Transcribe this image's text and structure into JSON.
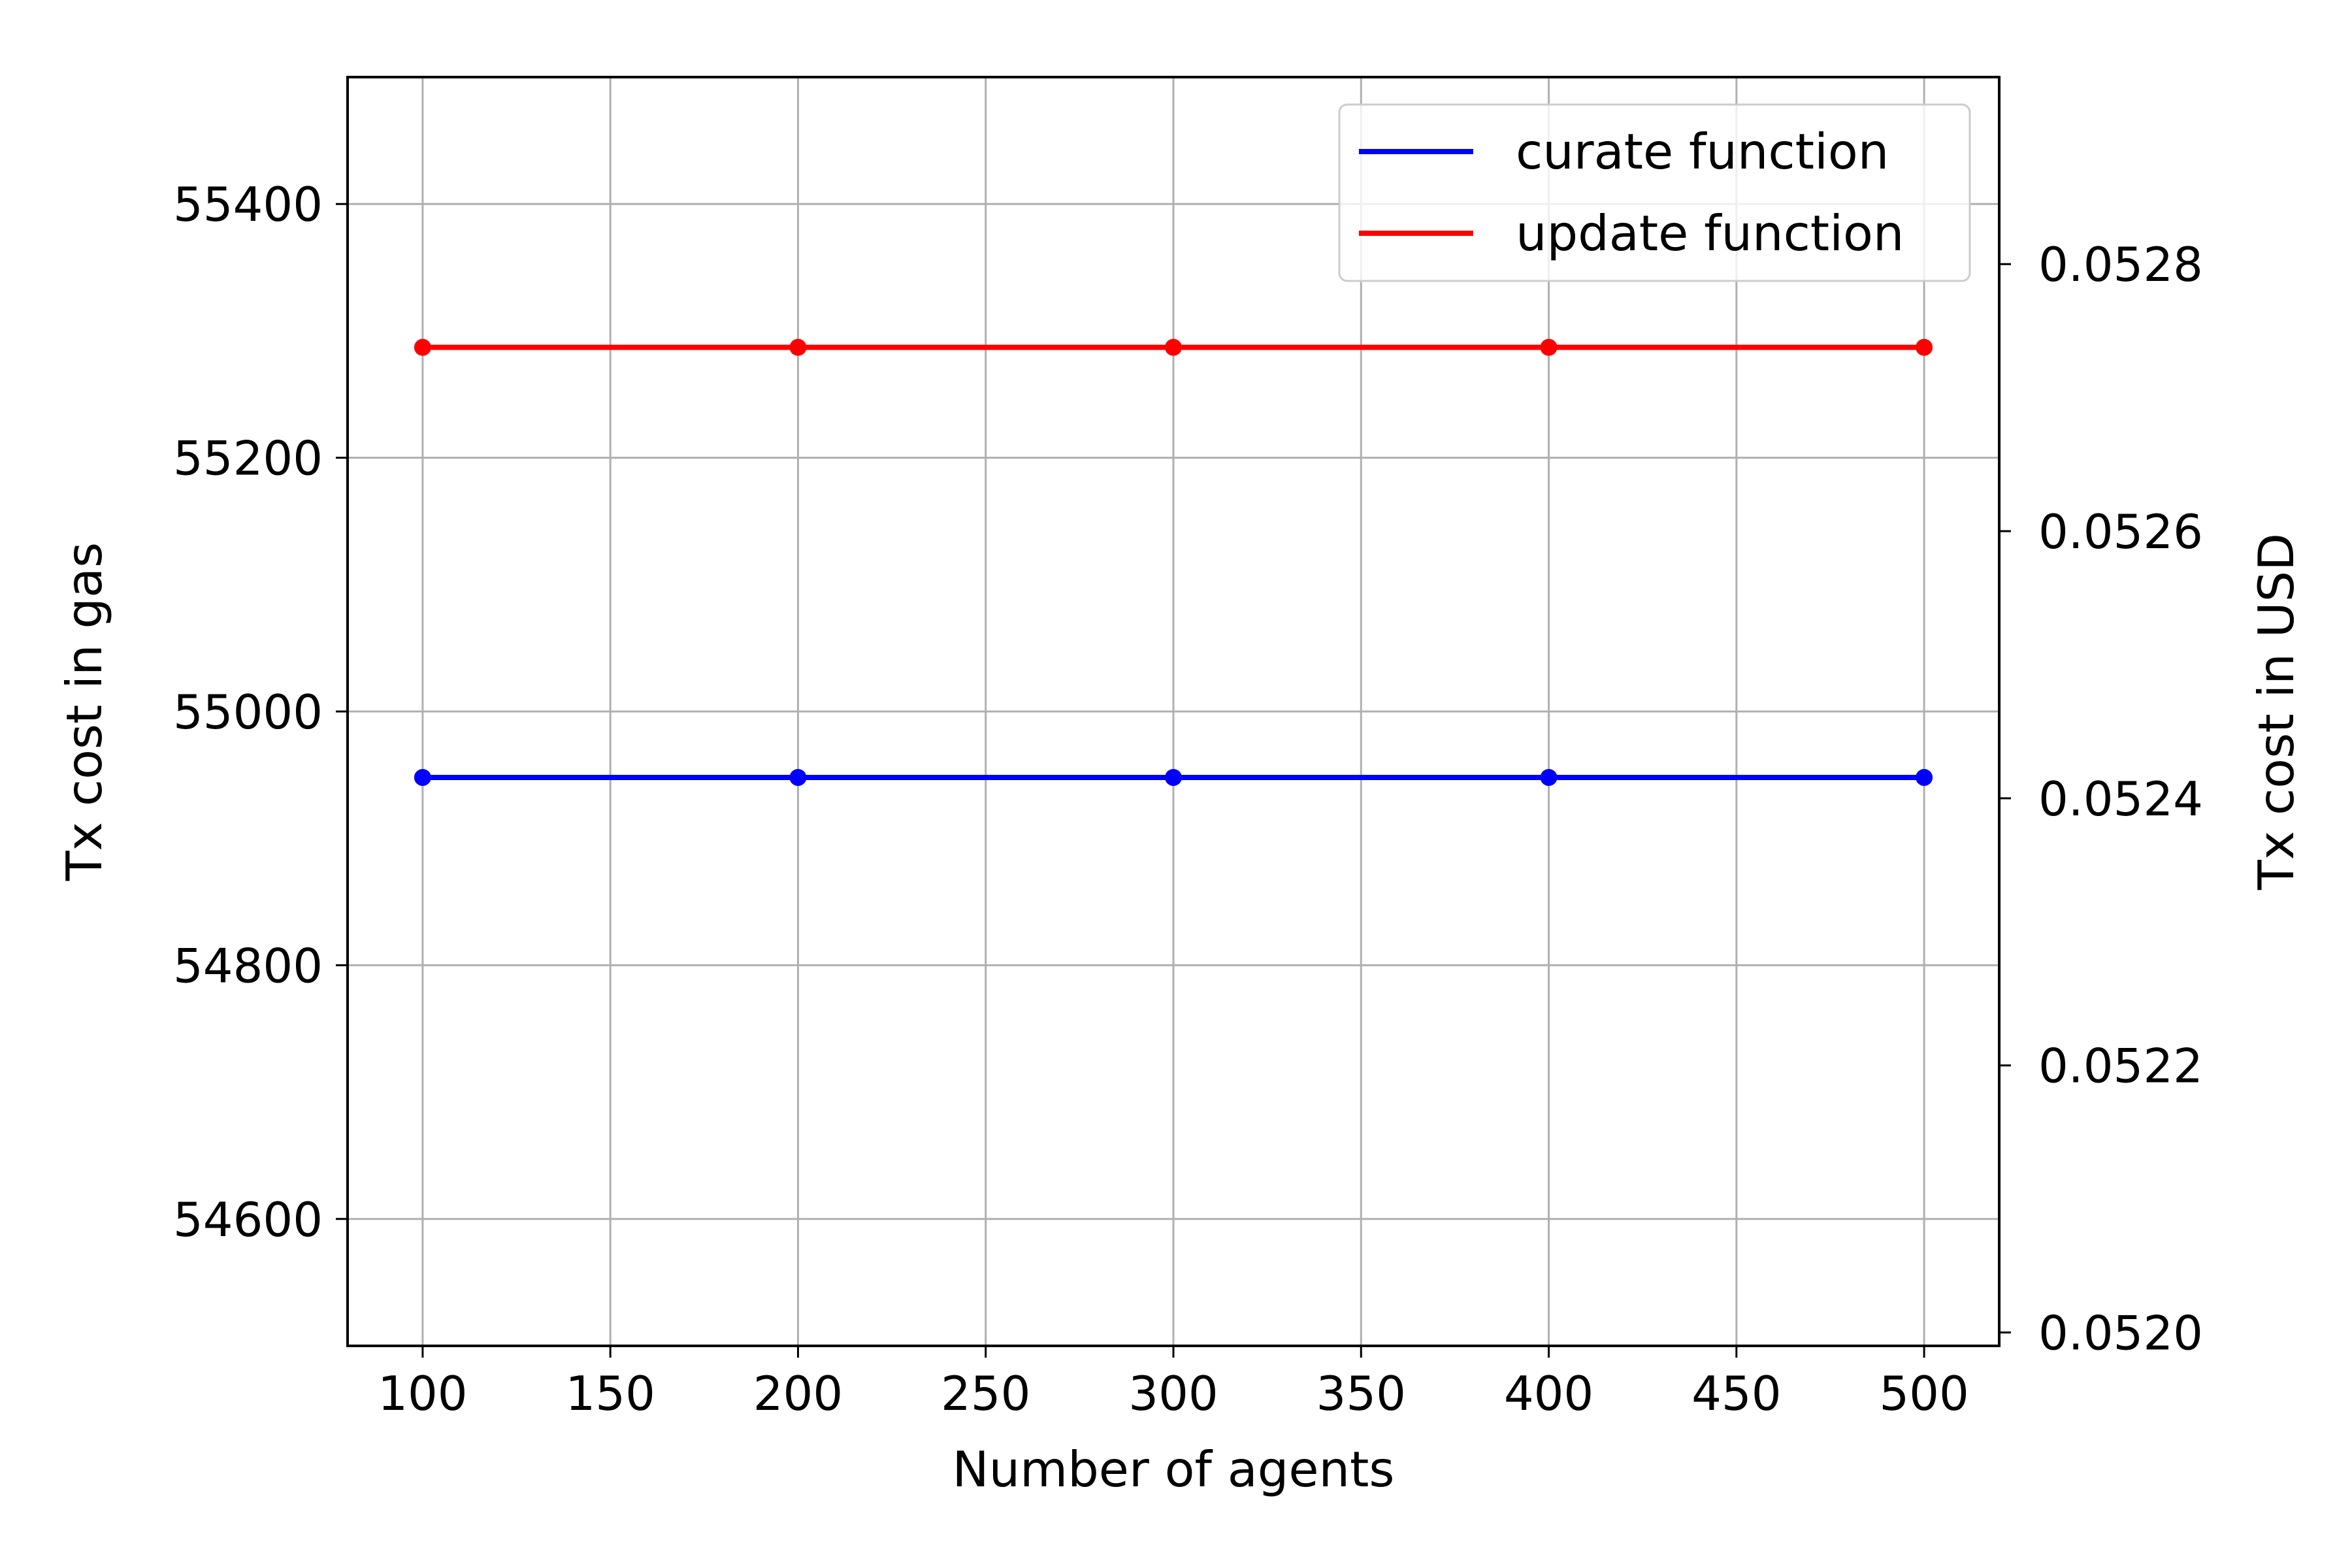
{
  "chart_data": {
    "type": "line",
    "title": "",
    "xlabel": "Number of agents",
    "ylabel": "Tx cost in gas",
    "y2label": "Tx cost in USD",
    "xlim": [
      80,
      520
    ],
    "ylim": [
      54500,
      55500
    ],
    "y2lim": [
      0.05199,
      0.05294
    ],
    "xticks": [
      100,
      150,
      200,
      250,
      300,
      350,
      400,
      450,
      500
    ],
    "yticks": [
      54600,
      54800,
      55000,
      55200,
      55400
    ],
    "y2ticks": [
      "0.0520",
      "0.0522",
      "0.0524",
      "0.0526",
      "0.0528"
    ],
    "y2tick_values": [
      0.052,
      0.0522,
      0.0524,
      0.0526,
      0.0528
    ],
    "grid": true,
    "legend_position": "top-right",
    "series": [
      {
        "name": "curate function",
        "color": "#0000ff",
        "x": [
          100,
          200,
          300,
          400,
          500
        ],
        "y": [
          54948,
          54948,
          54948,
          54948,
          54948
        ]
      },
      {
        "name": "update function",
        "color": "#ff0000",
        "x": [
          100,
          200,
          300,
          400,
          500
        ],
        "y": [
          55287,
          55287,
          55287,
          55287,
          55287
        ]
      }
    ]
  }
}
